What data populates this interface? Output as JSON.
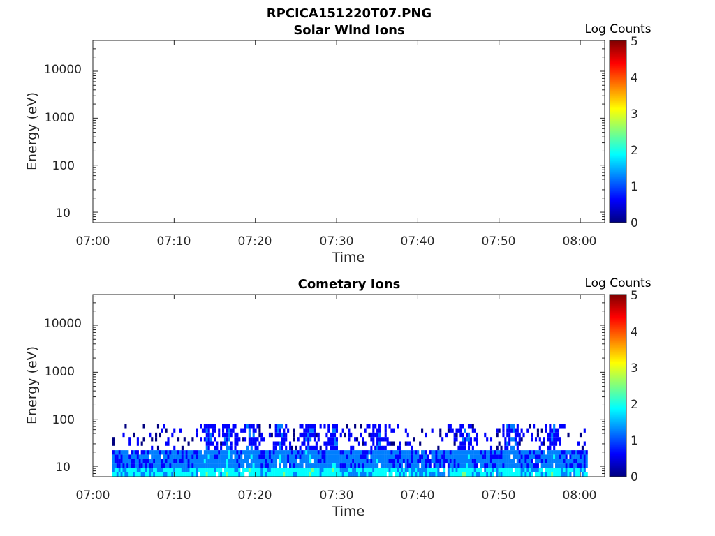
{
  "figure_title": "RPCICA151220T07.PNG",
  "colormap": [
    "#00007f",
    "#0000ff",
    "#007fff",
    "#00ffff",
    "#7fff7f",
    "#ffff00",
    "#ff7f00",
    "#ff0000",
    "#7f0000"
  ],
  "chart_data": [
    {
      "type": "heatmap",
      "title": "Solar Wind Ions",
      "xlabel": "Time",
      "ylabel": "Energy (eV)",
      "x_ticks": [
        "07:00",
        "07:10",
        "07:20",
        "07:30",
        "07:40",
        "07:50",
        "08:00"
      ],
      "xlim_minutes": [
        0,
        63
      ],
      "y_scale": "log",
      "y_ticks": [
        "10",
        "100",
        "1000",
        "10000"
      ],
      "ylim": [
        6,
        45000
      ],
      "colorbar": {
        "title": "Log Counts",
        "ticks": [
          "0",
          "1",
          "2",
          "3",
          "4",
          "5"
        ],
        "range": [
          0,
          5
        ]
      },
      "data": "empty",
      "grid": false
    },
    {
      "type": "heatmap",
      "title": "Cometary Ions",
      "xlabel": "Time",
      "ylabel": "Energy (eV)",
      "x_ticks": [
        "07:00",
        "07:10",
        "07:20",
        "07:30",
        "07:40",
        "07:50",
        "08:00"
      ],
      "xlim_minutes": [
        0,
        63
      ],
      "y_scale": "log",
      "y_ticks": [
        "10",
        "100",
        "1000",
        "10000"
      ],
      "ylim": [
        6,
        45000
      ],
      "colorbar": {
        "title": "Log Counts",
        "ticks": [
          "0",
          "1",
          "2",
          "3",
          "4",
          "5"
        ],
        "range": [
          0,
          5
        ]
      },
      "data_time_range_minutes": [
        2.4,
        60.8
      ],
      "data_energy_range_eV": [
        6,
        80
      ],
      "typical_log_counts": {
        "6-10 eV": 1.6,
        "10-20 eV": 1.0,
        "20-80 eV": 0.3
      },
      "activity_peaks_minutes": [
        14.2,
        16.5,
        19.2,
        23.0,
        26.5,
        29.5,
        35.3,
        45.8,
        51.5,
        56.5
      ],
      "grid": false
    }
  ]
}
